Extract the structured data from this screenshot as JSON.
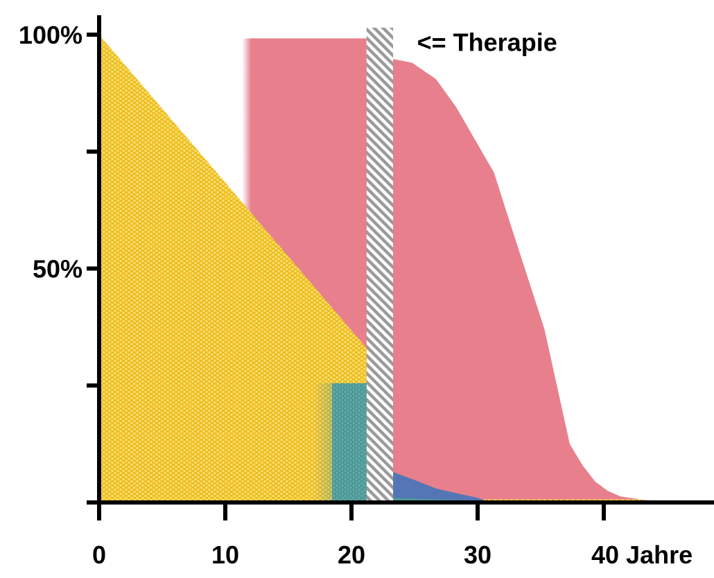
{
  "chart_data": {
    "type": "area",
    "xlim": [
      0,
      47
    ],
    "ylim": [
      0,
      100
    ],
    "x_ticks": [
      {
        "value": 0,
        "label": "0"
      },
      {
        "value": 10,
        "label": "10"
      },
      {
        "value": 20,
        "label": "20"
      },
      {
        "value": 30,
        "label": "30"
      },
      {
        "value": 40,
        "label": "40 Jahre"
      }
    ],
    "y_ticks": [
      {
        "value": 0,
        "label": ""
      },
      {
        "value": 25,
        "label": ""
      },
      {
        "value": 50,
        "label": "50%"
      },
      {
        "value": 75,
        "label": ""
      },
      {
        "value": 100,
        "label": "100%"
      }
    ],
    "colors": {
      "yellow": "#f2c52b",
      "red": "#e7808c",
      "teal": "#4e9a98",
      "blue": "#5476b5",
      "hatch": "#9a9a9a",
      "axis": "#000000"
    },
    "areas": {
      "yellow": {
        "points": [
          [
            0,
            100
          ],
          [
            21.2,
            33
          ],
          [
            21.2,
            0
          ],
          [
            0,
            0
          ]
        ],
        "bottom_strip": {
          "x": [
            30.5,
            43
          ],
          "y_top": 0.5
        }
      },
      "red": {
        "plateau": {
          "x": [
            12,
            21.2
          ],
          "y": 99.2
        },
        "points": [
          [
            23.3,
            94.8
          ],
          [
            24.8,
            94
          ],
          [
            26.7,
            90.5
          ],
          [
            28.3,
            84.5
          ],
          [
            29.8,
            77.5
          ],
          [
            31.3,
            70.5
          ],
          [
            32.3,
            62
          ],
          [
            33.8,
            49.5
          ],
          [
            35.3,
            37
          ],
          [
            37.3,
            12.5
          ],
          [
            38.3,
            8
          ],
          [
            39.3,
            4.5
          ],
          [
            40.3,
            2.5
          ],
          [
            41.3,
            1.3
          ],
          [
            43.3,
            0.5
          ],
          [
            46.5,
            0.2
          ]
        ]
      },
      "teal": {
        "x": [
          17,
          21.2
        ],
        "y_top": 25.5
      },
      "blue": {
        "points": [
          [
            23.3,
            6.5
          ],
          [
            25,
            4.8
          ],
          [
            26.7,
            3
          ],
          [
            28.3,
            2
          ],
          [
            30,
            1
          ],
          [
            30.8,
            0.2
          ]
        ],
        "teal_strip": {
          "x": [
            23.3,
            30
          ],
          "y_top": 1
        }
      },
      "therapy_bar": {
        "x": [
          21.2,
          23.3
        ],
        "y_top": 101.5
      }
    },
    "annotations": [
      {
        "text": "<= Therapie",
        "x": 25.2,
        "y": 98.3
      }
    ]
  }
}
